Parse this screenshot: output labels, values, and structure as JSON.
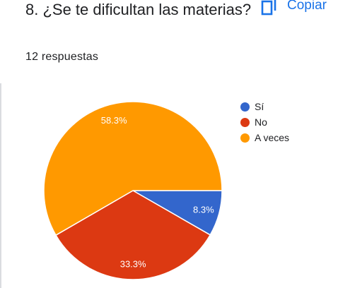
{
  "question": {
    "title": "8. ¿Se te dificultan las materias?",
    "response_count": "12 respuestas",
    "copy_label": "Copiar"
  },
  "colors": {
    "accent": "#1a73e8"
  },
  "chart_data": {
    "type": "pie",
    "title": "8. ¿Se te dificultan las materias?",
    "total_responses": 12,
    "slices": [
      {
        "label": "Sí",
        "value": 8.3,
        "count": 1,
        "color": "#3366cc",
        "display": "8.3%"
      },
      {
        "label": "No",
        "value": 33.3,
        "count": 4,
        "color": "#dc3912",
        "display": "33.3%"
      },
      {
        "label": "A veces",
        "value": 58.3,
        "count": 7,
        "color": "#ff9900",
        "display": "58.3%"
      }
    ],
    "legend_position": "right"
  }
}
